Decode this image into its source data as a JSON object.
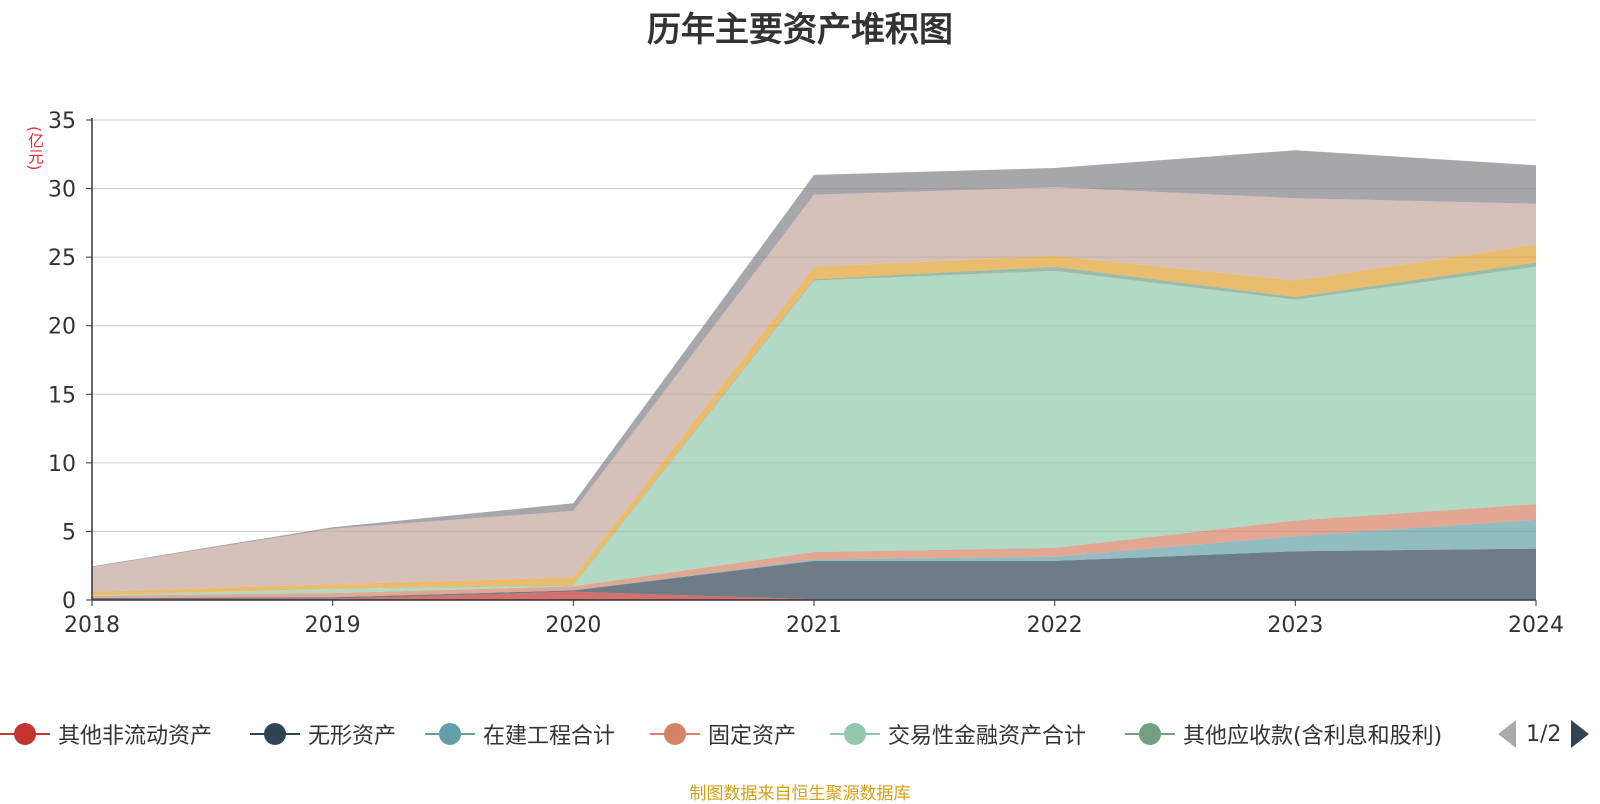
{
  "chart_data": {
    "type": "area",
    "stacked": true,
    "title": "历年主要资产堆积图",
    "unit_label": "(亿元)",
    "x": [
      "2018",
      "2019",
      "2020",
      "2021",
      "2022",
      "2023",
      "2024"
    ],
    "ylim": [
      0,
      35
    ],
    "yticks": [
      "0",
      "5",
      "10",
      "15",
      "20",
      "25",
      "30",
      "35"
    ],
    "grid": true,
    "legend_position": "bottom",
    "series": [
      {
        "name": "其他非流动资产",
        "color": "#c23531",
        "values": [
          0.05,
          0.1,
          0.6,
          0.05,
          0.05,
          0.05,
          0.05
        ]
      },
      {
        "name": "无形资产",
        "color": "#2f4554",
        "values": [
          0.1,
          0.1,
          0.1,
          2.8,
          2.8,
          3.5,
          3.7
        ]
      },
      {
        "name": "在建工程合计",
        "color": "#61a0a8",
        "values": [
          0.0,
          0.0,
          0.0,
          0.1,
          0.3,
          1.1,
          2.1
        ]
      },
      {
        "name": "固定资产",
        "color": "#d48265",
        "values": [
          0.15,
          0.3,
          0.3,
          0.55,
          0.65,
          1.15,
          1.15
        ]
      },
      {
        "name": "交易性金融资产合计",
        "color": "#91c7ae",
        "values": [
          0.05,
          0.3,
          0.05,
          19.8,
          20.2,
          16.1,
          17.3
        ]
      },
      {
        "name": "其他应收款(含利息和股利)",
        "color": "#749f83",
        "values": [
          0.0,
          0.0,
          0.05,
          0.1,
          0.3,
          0.2,
          0.3
        ]
      },
      {
        "name": "",
        "color": "#e0a030",
        "values": [
          0.25,
          0.35,
          0.55,
          0.9,
          0.8,
          1.2,
          1.3
        ]
      },
      {
        "name": "",
        "color": "#c4a59c",
        "values": [
          1.8,
          4.05,
          4.85,
          5.25,
          5.0,
          6.0,
          3.0
        ]
      },
      {
        "name": "",
        "color": "#808088",
        "values": [
          0.05,
          0.1,
          0.55,
          1.45,
          1.4,
          3.5,
          2.8
        ]
      }
    ]
  },
  "legend": {
    "items": [
      {
        "label": "其他非流动资产",
        "color": "#c23531"
      },
      {
        "label": "无形资产",
        "color": "#2f4554"
      },
      {
        "label": "在建工程合计",
        "color": "#61a0a8"
      },
      {
        "label": "固定资产",
        "color": "#d48265"
      },
      {
        "label": "交易性金融资产合计",
        "color": "#91c7ae"
      },
      {
        "label": "其他应收款(含利息和股利)",
        "color": "#749f83"
      }
    ],
    "page": "1/2"
  },
  "source_note": "制图数据来自恒生聚源数据库"
}
